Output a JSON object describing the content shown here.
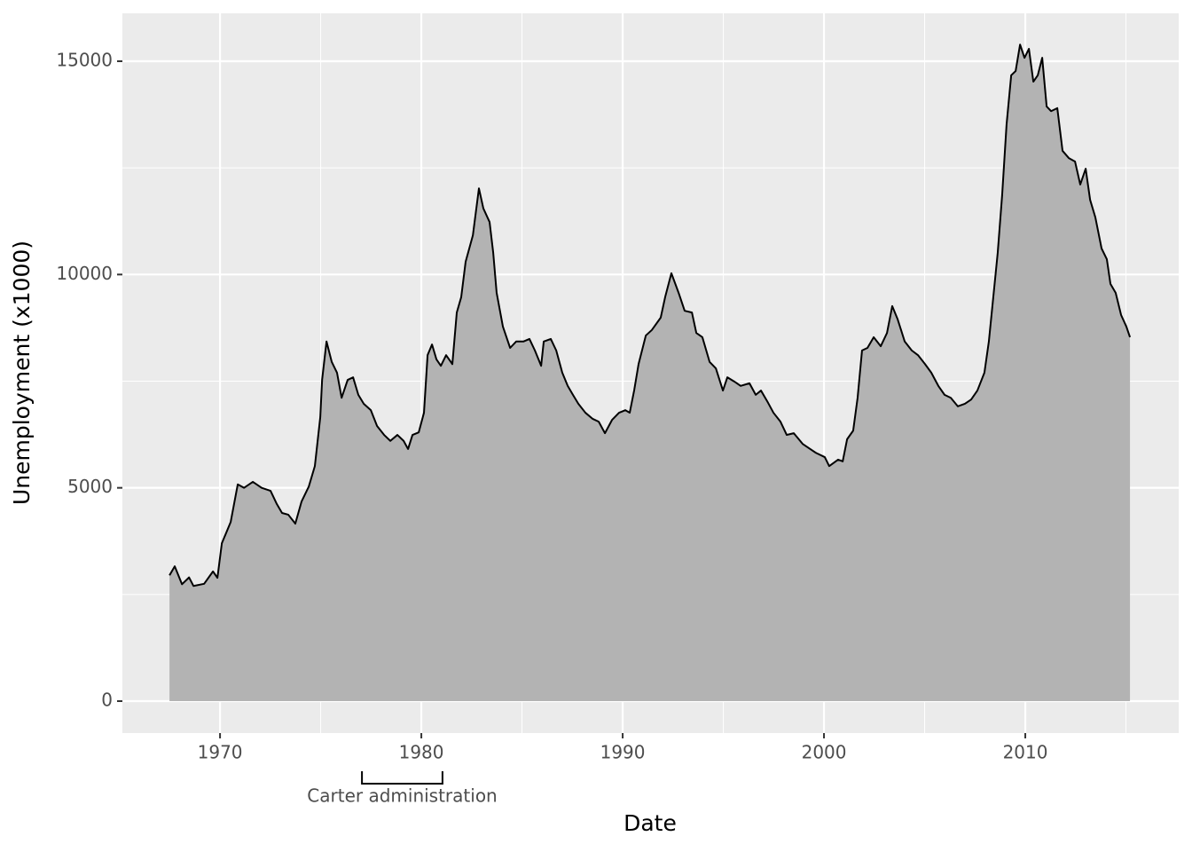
{
  "chart_data": {
    "type": "area",
    "x_label": "Date",
    "y_label": "Unemployment (x1000)",
    "xlim": [
      1965.15,
      2017.62
    ],
    "ylim": [
      -749,
      16123
    ],
    "xticks": [
      1970,
      1980,
      1990,
      2000,
      2010
    ],
    "yticks": [
      0,
      5000,
      10000,
      15000
    ],
    "x_minor_ticks": [
      1975,
      1985,
      1995,
      2005,
      2015
    ],
    "y_minor_ticks": [
      2500,
      7500,
      12500
    ],
    "grid": true,
    "background": "#ebebeb",
    "color": "#000000",
    "fill_color": "#b3b3b3",
    "x": [
      1967.49,
      1967.75,
      1968.11,
      1968.46,
      1968.68,
      1969.21,
      1969.65,
      1969.87,
      1970.09,
      1970.53,
      1970.88,
      1971.19,
      1971.63,
      1972.07,
      1972.51,
      1972.82,
      1973.08,
      1973.39,
      1973.74,
      1974.05,
      1974.41,
      1974.71,
      1974.98,
      1975.07,
      1975.29,
      1975.55,
      1975.81,
      1976.04,
      1976.34,
      1976.61,
      1976.87,
      1977.14,
      1977.49,
      1977.8,
      1978.15,
      1978.46,
      1978.81,
      1979.12,
      1979.34,
      1979.56,
      1979.87,
      1980.13,
      1980.31,
      1980.53,
      1980.75,
      1980.97,
      1981.23,
      1981.54,
      1981.76,
      1981.98,
      1982.2,
      1982.56,
      1982.86,
      1983.08,
      1983.39,
      1983.57,
      1983.74,
      1984.05,
      1984.41,
      1984.71,
      1985.07,
      1985.37,
      1985.64,
      1985.95,
      1986.08,
      1986.43,
      1986.7,
      1987.0,
      1987.27,
      1987.53,
      1987.8,
      1988.15,
      1988.5,
      1988.81,
      1989.12,
      1989.47,
      1989.82,
      1990.13,
      1990.35,
      1990.57,
      1990.79,
      1991.15,
      1991.45,
      1991.89,
      1992.11,
      1992.42,
      1992.78,
      1993.08,
      1993.44,
      1993.66,
      1993.96,
      1994.32,
      1994.63,
      1994.98,
      1995.2,
      1995.55,
      1995.86,
      1996.3,
      1996.61,
      1996.87,
      1997.18,
      1997.49,
      1997.84,
      1998.15,
      1998.5,
      1998.94,
      1999.25,
      1999.6,
      2000.04,
      2000.26,
      2000.7,
      2000.93,
      2001.15,
      2001.45,
      2001.67,
      2001.89,
      2002.16,
      2002.47,
      2002.82,
      2003.13,
      2003.39,
      2003.66,
      2004.01,
      2004.36,
      2004.67,
      2005.02,
      2005.33,
      2005.68,
      2005.99,
      2006.3,
      2006.65,
      2007.0,
      2007.31,
      2007.62,
      2007.97,
      2008.19,
      2008.41,
      2008.63,
      2008.85,
      2009.07,
      2009.3,
      2009.52,
      2009.74,
      2009.96,
      2010.18,
      2010.4,
      2010.62,
      2010.84,
      2011.06,
      2011.28,
      2011.59,
      2011.85,
      2012.16,
      2012.47,
      2012.73,
      2013.0,
      2013.22,
      2013.48,
      2013.79,
      2014.05,
      2014.23,
      2014.49,
      2014.76,
      2015.02,
      2015.2
    ],
    "values": [
      2950,
      3160,
      2740,
      2900,
      2700,
      2750,
      3040,
      2890,
      3700,
      4200,
      5080,
      5000,
      5140,
      5000,
      4930,
      4620,
      4410,
      4370,
      4160,
      4680,
      5030,
      5510,
      6660,
      7530,
      8430,
      7950,
      7700,
      7110,
      7530,
      7590,
      7180,
      6970,
      6820,
      6450,
      6240,
      6100,
      6240,
      6100,
      5910,
      6240,
      6300,
      6760,
      8110,
      8360,
      8010,
      7860,
      8110,
      7900,
      9110,
      9470,
      10300,
      10920,
      12020,
      11550,
      11230,
      10510,
      9570,
      8780,
      8280,
      8430,
      8430,
      8490,
      8220,
      7860,
      8430,
      8490,
      8220,
      7700,
      7390,
      7180,
      6970,
      6760,
      6620,
      6550,
      6280,
      6590,
      6760,
      6820,
      6760,
      7280,
      7900,
      8570,
      8700,
      8990,
      9470,
      10030,
      9570,
      9150,
      9110,
      8630,
      8530,
      7950,
      7800,
      7280,
      7590,
      7490,
      7390,
      7450,
      7180,
      7280,
      7030,
      6760,
      6550,
      6240,
      6280,
      6030,
      5930,
      5820,
      5720,
      5510,
      5660,
      5620,
      6140,
      6340,
      7110,
      8220,
      8280,
      8530,
      8320,
      8630,
      9260,
      8950,
      8430,
      8220,
      8110,
      7900,
      7700,
      7390,
      7180,
      7110,
      6910,
      6970,
      7070,
      7280,
      7700,
      8430,
      9470,
      10510,
      11860,
      13520,
      14670,
      14770,
      15390,
      15080,
      15290,
      14520,
      14670,
      15080,
      13940,
      13830,
      13900,
      12900,
      12730,
      12650,
      12110,
      12480,
      11750,
      11340,
      10610,
      10360,
      9780,
      9570,
      9050,
      8780,
      8530
    ],
    "annotations": [
      {
        "text": "Carter administration",
        "start": 1977.05,
        "end": 1981.05
      }
    ]
  }
}
